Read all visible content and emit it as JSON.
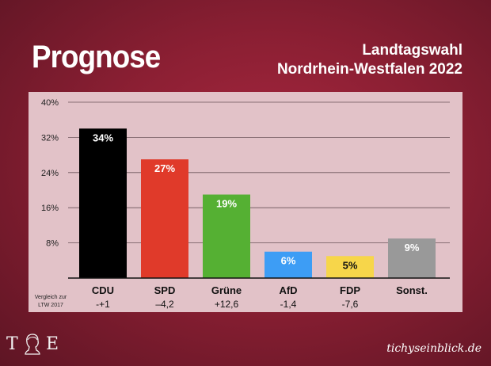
{
  "header": {
    "heading": "Prognose",
    "subtitle_line1": "Landtagswahl",
    "subtitle_line2": "Nordrhein-Westfalen 2022"
  },
  "footer": {
    "logo_left": "T",
    "logo_right": "E",
    "site": "tichyseinblick.de"
  },
  "chart_data": {
    "type": "bar",
    "categories": [
      "CDU",
      "SPD",
      "Grüne",
      "AfD",
      "FDP",
      "Sonst."
    ],
    "values": [
      34,
      27,
      19,
      6,
      5,
      9
    ],
    "value_labels": [
      "34%",
      "27%",
      "19%",
      "6%",
      "5%",
      "9%"
    ],
    "colors": [
      "#000000",
      "#e03a2a",
      "#55b033",
      "#3d9df5",
      "#f7d64a",
      "#999999"
    ],
    "label_colors": [
      "#ffffff",
      "#ffffff",
      "#ffffff",
      "#ffffff",
      "#111111",
      "#ffffff"
    ],
    "ylim": [
      0,
      40
    ],
    "y_ticks": [
      8,
      16,
      24,
      32,
      40
    ],
    "y_tick_labels": [
      "8%",
      "16%",
      "24%",
      "32%",
      "40%"
    ],
    "grid": true,
    "comparison_label_line1": "Vergleich zur",
    "comparison_label_line2": "LTW 2017",
    "comparison_values": [
      "-+1",
      "–4,2",
      "+12,6",
      "-1,4",
      "-7,6",
      ""
    ]
  }
}
